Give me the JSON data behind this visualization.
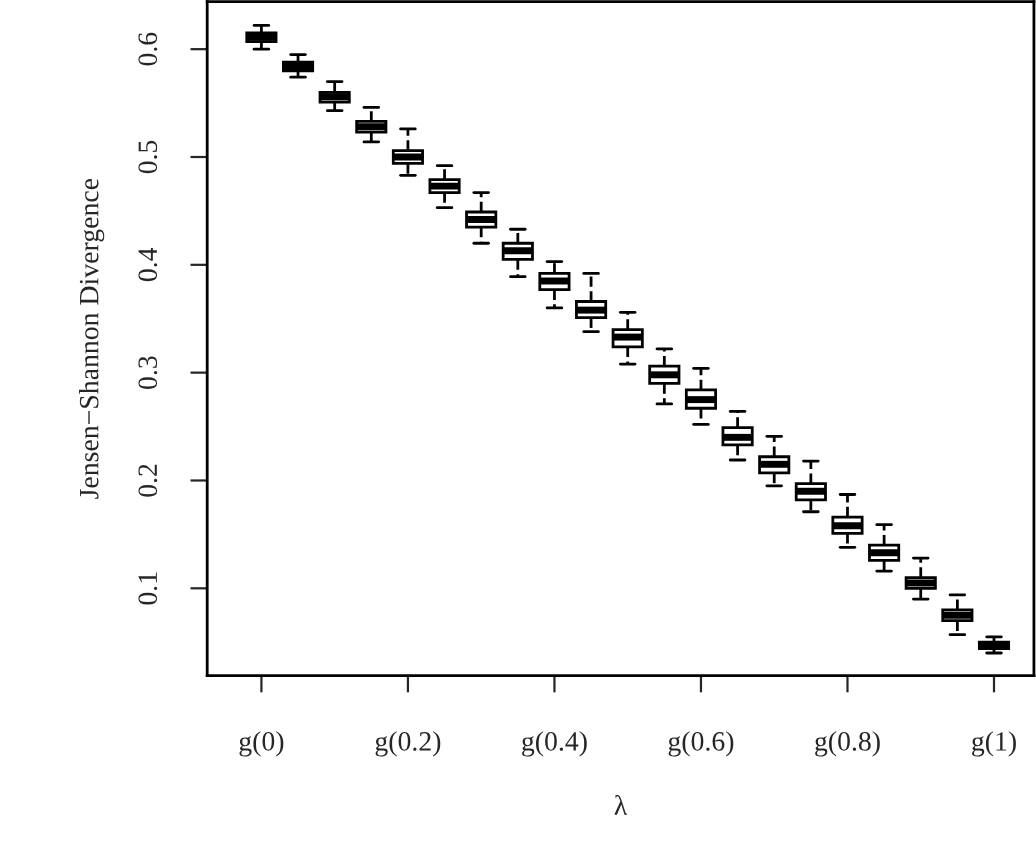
{
  "chart_data": {
    "type": "box",
    "xlabel": "λ",
    "ylabel": "Jensen−Shannon Divergence",
    "categories": [
      "g(0)",
      null,
      null,
      null,
      "g(0.2)",
      null,
      null,
      null,
      "g(0.4)",
      null,
      null,
      null,
      "g(0.6)",
      null,
      null,
      null,
      "g(0.8)",
      null,
      null,
      null,
      "g(1)"
    ],
    "boxes": [
      {
        "low": 0.6,
        "q1": 0.607,
        "median": 0.611,
        "q3": 0.615,
        "high": 0.622
      },
      {
        "low": 0.574,
        "q1": 0.58,
        "median": 0.584,
        "q3": 0.588,
        "high": 0.595
      },
      {
        "low": 0.543,
        "q1": 0.551,
        "median": 0.556,
        "q3": 0.56,
        "high": 0.57
      },
      {
        "low": 0.514,
        "q1": 0.523,
        "median": 0.528,
        "q3": 0.533,
        "high": 0.546
      },
      {
        "low": 0.483,
        "q1": 0.494,
        "median": 0.5,
        "q3": 0.506,
        "high": 0.526
      },
      {
        "low": 0.453,
        "q1": 0.467,
        "median": 0.473,
        "q3": 0.479,
        "high": 0.492
      },
      {
        "low": 0.42,
        "q1": 0.435,
        "median": 0.442,
        "q3": 0.449,
        "high": 0.467
      },
      {
        "low": 0.389,
        "q1": 0.405,
        "median": 0.413,
        "q3": 0.42,
        "high": 0.433
      },
      {
        "low": 0.36,
        "q1": 0.377,
        "median": 0.385,
        "q3": 0.392,
        "high": 0.403
      },
      {
        "low": 0.338,
        "q1": 0.351,
        "median": 0.358,
        "q3": 0.366,
        "high": 0.392
      },
      {
        "low": 0.308,
        "q1": 0.324,
        "median": 0.333,
        "q3": 0.34,
        "high": 0.356
      },
      {
        "low": 0.271,
        "q1": 0.29,
        "median": 0.298,
        "q3": 0.306,
        "high": 0.322
      },
      {
        "low": 0.252,
        "q1": 0.267,
        "median": 0.275,
        "q3": 0.284,
        "high": 0.304
      },
      {
        "low": 0.219,
        "q1": 0.233,
        "median": 0.24,
        "q3": 0.249,
        "high": 0.264
      },
      {
        "low": 0.195,
        "q1": 0.207,
        "median": 0.215,
        "q3": 0.222,
        "high": 0.241
      },
      {
        "low": 0.171,
        "q1": 0.182,
        "median": 0.19,
        "q3": 0.197,
        "high": 0.218
      },
      {
        "low": 0.138,
        "q1": 0.151,
        "median": 0.158,
        "q3": 0.166,
        "high": 0.187
      },
      {
        "low": 0.116,
        "q1": 0.126,
        "median": 0.133,
        "q3": 0.14,
        "high": 0.159
      },
      {
        "low": 0.09,
        "q1": 0.1,
        "median": 0.105,
        "q3": 0.11,
        "high": 0.128
      },
      {
        "low": 0.057,
        "q1": 0.07,
        "median": 0.075,
        "q3": 0.08,
        "high": 0.094
      },
      {
        "low": 0.04,
        "q1": 0.044,
        "median": 0.047,
        "q3": 0.05,
        "high": 0.055
      }
    ],
    "ylim": [
      0.019,
      0.644
    ],
    "yticks": [
      0.1,
      0.2,
      0.3,
      0.4,
      0.5,
      0.6
    ],
    "grid": false,
    "legend": false
  }
}
